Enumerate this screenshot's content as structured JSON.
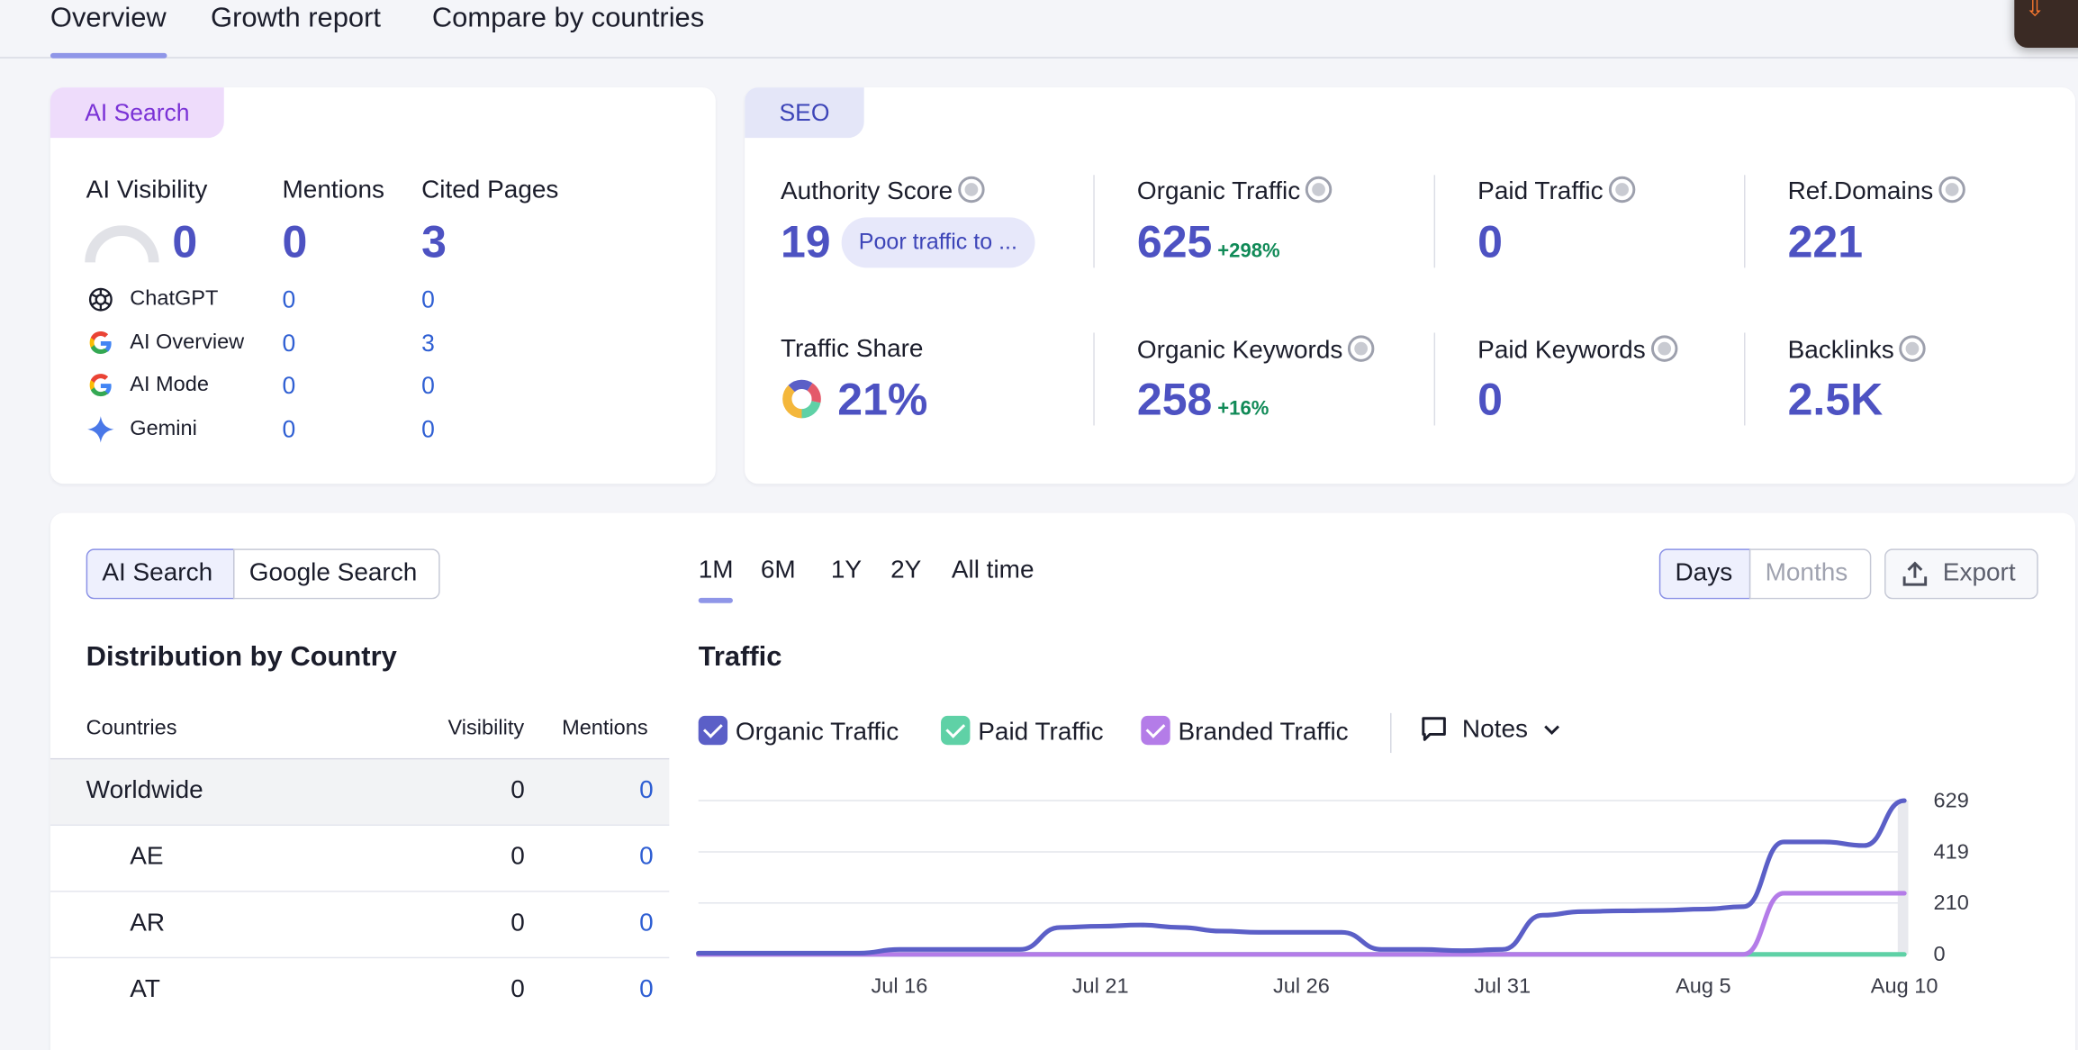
{
  "tabs": [
    "Overview",
    "Growth report",
    "Compare by countries"
  ],
  "corner_button": {
    "icon": "download-icon",
    "color": "#ff7a2f"
  },
  "ai_card": {
    "tag": "AI Search",
    "metrics": [
      {
        "label": "AI Visibility",
        "value": "0"
      },
      {
        "label": "Mentions",
        "value": "0"
      },
      {
        "label": "Cited Pages",
        "value": "3"
      }
    ],
    "sources": [
      {
        "name": "ChatGPT",
        "icon": "chatgpt-icon",
        "mentions": "0",
        "cited": "0"
      },
      {
        "name": "AI Overview",
        "icon": "google-icon",
        "mentions": "0",
        "cited": "3"
      },
      {
        "name": "AI Mode",
        "icon": "google-icon",
        "mentions": "0",
        "cited": "0"
      },
      {
        "name": "Gemini",
        "icon": "gemini-icon",
        "mentions": "0",
        "cited": "0"
      }
    ]
  },
  "seo_card": {
    "tag": "SEO",
    "authority": {
      "label": "Authority Score",
      "value": "19",
      "pill": "Poor traffic to ..."
    },
    "organic_traffic": {
      "label": "Organic Traffic",
      "value": "625",
      "delta": "+298%"
    },
    "paid_traffic": {
      "label": "Paid Traffic",
      "value": "0"
    },
    "ref_domains": {
      "label": "Ref.Domains",
      "value": "221"
    },
    "traffic_share": {
      "label": "Traffic Share",
      "value": "21%"
    },
    "organic_keywords": {
      "label": "Organic Keywords",
      "value": "258",
      "delta": "+16%"
    },
    "paid_keywords": {
      "label": "Paid Keywords",
      "value": "0"
    },
    "backlinks": {
      "label": "Backlinks",
      "value": "2.5K"
    }
  },
  "bottom": {
    "search_toggle": [
      "AI Search",
      "Google Search"
    ],
    "periods": [
      "1M",
      "6M",
      "1Y",
      "2Y",
      "All time"
    ],
    "granularity": [
      "Days",
      "Months"
    ],
    "export_label": "Export",
    "distribution": {
      "title": "Distribution by Country",
      "headers": [
        "Countries",
        "Visibility",
        "Mentions"
      ],
      "rows": [
        {
          "country": "Worldwide",
          "visibility": "0",
          "mentions": "0"
        },
        {
          "country": "AE",
          "visibility": "0",
          "mentions": "0"
        },
        {
          "country": "AR",
          "visibility": "0",
          "mentions": "0"
        },
        {
          "country": "AT",
          "visibility": "0",
          "mentions": "0"
        }
      ]
    },
    "traffic_title": "Traffic",
    "legend": [
      {
        "label": "Organic Traffic",
        "color": "#5b5fc7"
      },
      {
        "label": "Paid Traffic",
        "color": "#5fd1a6"
      },
      {
        "label": "Branded Traffic",
        "color": "#b47ce8"
      }
    ],
    "notes_label": "Notes"
  },
  "chart_data": {
    "type": "line",
    "title": "Traffic",
    "x_ticks": [
      "Jul 16",
      "Jul 21",
      "Jul 26",
      "Jul 31",
      "Aug 5",
      "Aug 10"
    ],
    "y_ticks": [
      0,
      210,
      419,
      629
    ],
    "ylim": [
      0,
      629
    ],
    "x": [
      "Jul 11",
      "Jul 12",
      "Jul 13",
      "Jul 14",
      "Jul 15",
      "Jul 16",
      "Jul 17",
      "Jul 18",
      "Jul 19",
      "Jul 20",
      "Jul 21",
      "Jul 22",
      "Jul 23",
      "Jul 24",
      "Jul 25",
      "Jul 26",
      "Jul 27",
      "Jul 28",
      "Jul 29",
      "Jul 30",
      "Jul 31",
      "Aug 1",
      "Aug 2",
      "Aug 3",
      "Aug 4",
      "Aug 5",
      "Aug 6",
      "Aug 7",
      "Aug 8",
      "Aug 9",
      "Aug 10"
    ],
    "series": [
      {
        "name": "Organic Traffic",
        "color": "#5b5fc7",
        "values": [
          5,
          5,
          5,
          5,
          5,
          20,
          20,
          20,
          20,
          110,
          115,
          120,
          110,
          95,
          90,
          90,
          90,
          20,
          20,
          15,
          20,
          160,
          175,
          178,
          180,
          185,
          195,
          460,
          460,
          445,
          629
        ]
      },
      {
        "name": "Paid Traffic",
        "color": "#5fd1a6",
        "values": [
          0,
          0,
          0,
          0,
          0,
          0,
          0,
          0,
          0,
          0,
          0,
          0,
          0,
          0,
          0,
          0,
          0,
          0,
          0,
          0,
          0,
          0,
          0,
          0,
          0,
          0,
          0,
          0,
          0,
          0,
          0
        ]
      },
      {
        "name": "Branded Traffic",
        "color": "#b47ce8",
        "values": [
          0,
          0,
          0,
          0,
          0,
          0,
          0,
          0,
          0,
          0,
          0,
          0,
          0,
          0,
          0,
          0,
          0,
          0,
          0,
          0,
          0,
          0,
          0,
          0,
          0,
          0,
          0,
          250,
          250,
          250,
          250
        ]
      }
    ]
  }
}
